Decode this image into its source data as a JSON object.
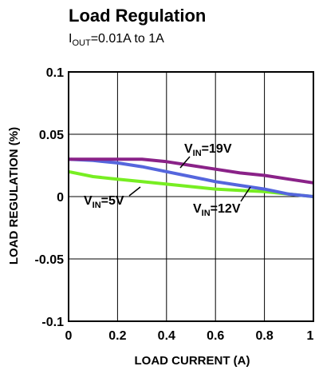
{
  "chart_data": {
    "type": "line",
    "title": "Load Regulation",
    "subtitle_parts": {
      "prefix": "I",
      "sub": "OUT",
      "rest": "=0.01A to 1A"
    },
    "xlabel": "LOAD CURRENT (A)",
    "ylabel": "LOAD REGULATION (%)",
    "xlim": [
      0,
      1
    ],
    "ylim": [
      -0.1,
      0.1
    ],
    "x_ticks": [
      {
        "value": 0,
        "label": "0"
      },
      {
        "value": 0.2,
        "label": "0.2"
      },
      {
        "value": 0.4,
        "label": "0.4"
      },
      {
        "value": 0.6,
        "label": "0.6"
      },
      {
        "value": 0.8,
        "label": "0.8"
      },
      {
        "value": 1,
        "label": "1"
      }
    ],
    "y_ticks": [
      {
        "value": 0.1,
        "label": "0.1"
      },
      {
        "value": 0.05,
        "label": "0.05"
      },
      {
        "value": 0,
        "label": "0"
      },
      {
        "value": -0.05,
        "label": "-0.05"
      },
      {
        "value": -0.1,
        "label": "-0.1"
      }
    ],
    "grid": true,
    "series": [
      {
        "id": "vin5",
        "label_prefix": "V",
        "label_sub": "IN",
        "label_rest": "=5V",
        "color": "#77ee22",
        "x": [
          0,
          0.1,
          0.2,
          0.3,
          0.4,
          0.5,
          0.6,
          0.7,
          0.8,
          0.9,
          1.0
        ],
        "y": [
          0.02,
          0.016,
          0.014,
          0.012,
          0.01,
          0.008,
          0.006,
          0.005,
          0.004,
          0.002,
          0.0
        ]
      },
      {
        "id": "vin12",
        "label_prefix": "V",
        "label_sub": "IN",
        "label_rest": "=12V",
        "color": "#5566dd",
        "x": [
          0,
          0.1,
          0.2,
          0.3,
          0.4,
          0.5,
          0.6,
          0.7,
          0.8,
          0.9,
          1.0
        ],
        "y": [
          0.03,
          0.029,
          0.027,
          0.024,
          0.02,
          0.016,
          0.012,
          0.009,
          0.006,
          0.002,
          0.0
        ]
      },
      {
        "id": "vin19",
        "label_prefix": "V",
        "label_sub": "IN",
        "label_rest": "=19V",
        "color": "#8a2288",
        "x": [
          0,
          0.1,
          0.2,
          0.3,
          0.4,
          0.5,
          0.6,
          0.7,
          0.8,
          0.9,
          1.0
        ],
        "y": [
          0.03,
          0.03,
          0.03,
          0.03,
          0.028,
          0.025,
          0.022,
          0.019,
          0.017,
          0.014,
          0.011
        ]
      }
    ]
  }
}
